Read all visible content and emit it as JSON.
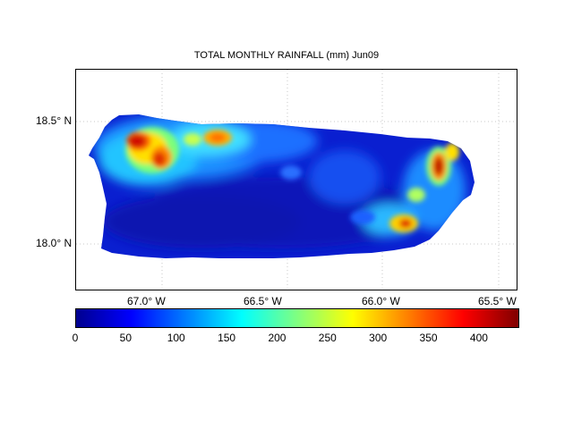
{
  "title": "TOTAL MONTHLY RAINFALL (mm) Jun09",
  "map": {
    "lat_labels": [
      {
        "text": "18.5° N",
        "value": 18.5
      },
      {
        "text": "18.0° N",
        "value": 18.0
      }
    ],
    "lon_labels": [
      {
        "text": "67.0° W",
        "value": -67.0
      },
      {
        "text": "66.5° W",
        "value": -66.5
      },
      {
        "text": "66.0° W",
        "value": -66.0
      },
      {
        "text": "65.5° W",
        "value": -65.5
      }
    ],
    "extent": {
      "lon": [
        -67.3,
        -65.45
      ],
      "lat": [
        17.8,
        18.7
      ]
    },
    "gridlines": "dotted"
  },
  "colorbar": {
    "min": 0,
    "max": 440,
    "ticks": [
      0,
      50,
      100,
      150,
      200,
      250,
      300,
      350,
      400
    ],
    "colormap": "jet"
  }
}
